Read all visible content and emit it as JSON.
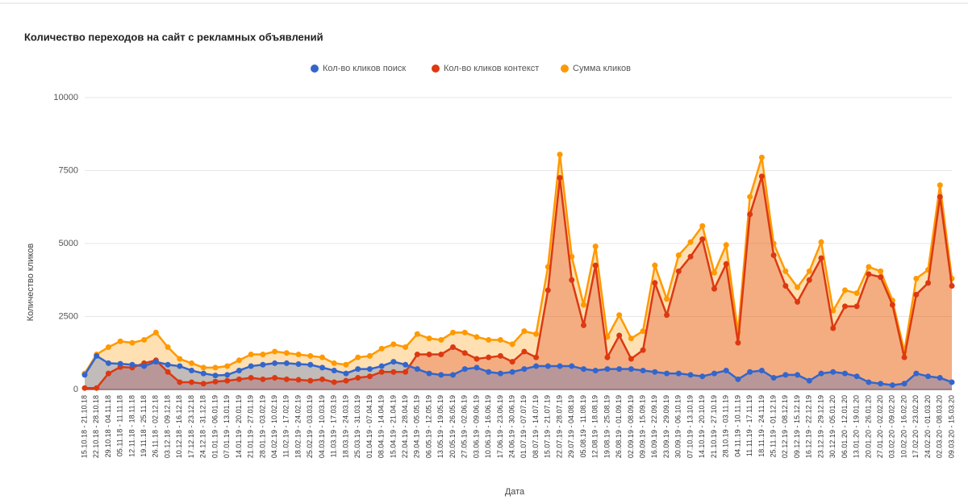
{
  "chart_data": {
    "type": "area",
    "title": "Количество переходов на сайт с рекламных объявлений",
    "x_label": "Дата",
    "y_label": "Количество кликов",
    "categories": [
      "15.10.18 - 21.10.18",
      "22.10.18 - 28.10.18",
      "29.10.18 - 04.11.18",
      "05.11.18 - 11.11.18",
      "12.11.18 - 18.11.18",
      "19.11.18 - 25.11.18",
      "26.11.18 - 02.12.18",
      "03.12.18 - 09.12.18",
      "10.12.18 - 16.12.18",
      "17.12.18 - 23.12.18",
      "24.12.18 - 31.12.18",
      "01.01.19 - 06.01.19",
      "07.01.19 - 13.01.19",
      "14.01.19 - 20.01.19",
      "21.01.19 - 27.01.19",
      "28.01.19 - 03.02.19",
      "04.02.19 - 10.02.19",
      "11.02.19 - 17.02.19",
      "18.02.19 - 24.02.19",
      "25.02.19 - 03.03.19",
      "04.03.19 - 10.03.19",
      "11.03.19 - 17.03.19",
      "18.03.19 - 24.03.19",
      "25.03.19 - 31.03.19",
      "01.04.19 - 07.04.19",
      "08.04.19 - 14.04.19",
      "15.04.19 - 21.04.19",
      "22.04.19 - 28.04.19",
      "29.04.19 - 05.05.19",
      "06.05.19 - 12.05.19",
      "13.05.19 - 19.05.19",
      "20.05.19 - 26.05.19",
      "27.05.19 - 02.06.19",
      "03.06.19 - 09.06.19",
      "10.06.19 - 16.06.19",
      "17.06.19 - 23.06.19",
      "24.06.19 - 30.06.19",
      "01.07.19 - 07.07.19",
      "08.07.19 - 14.07.19",
      "15.07.19 - 21.07.19",
      "22.07.19 - 28.07.19",
      "29.07.19 - 04.08.19",
      "05.08.19 - 11.08.19",
      "12.08.19 - 18.08.19",
      "19.08.19 - 25.08.19",
      "26.08.19 - 01.09.19",
      "02.09.19 - 08.09.19",
      "09.09.19 - 15.09.19",
      "16.09.19 - 22.09.19",
      "23.09.19 - 29.09.19",
      "30.09.19 - 06.10.19",
      "07.10.19 - 13.10.19",
      "14.10.19 - 20.10.19",
      "21.10.19 - 27.10.19",
      "28.10.19 - 03.11.19",
      "04.11.19 - 10.11.19",
      "11.11.19 - 17.11.19",
      "18.11.19 - 24.11.19",
      "25.11.19 - 01.12.19",
      "02.12.19 - 08.12.19",
      "09.12.19 - 15.12.19",
      "16.12.19 - 22.12.19",
      "23.12.19 - 29.12.19",
      "30.12.19 - 05.01.20",
      "06.01.20 - 12.01.20",
      "13.01.20 - 19.01.20",
      "20.01.20 - 26.01.20",
      "27.01.20 - 02.02.20",
      "03.02.20 - 09.02.20",
      "10.02.20 - 16.02.20",
      "17.02.20 - 23.02.20",
      "24.02.20 - 01.03.20",
      "02.03.20 - 08.03.20",
      "09.03.20 - 15.03.20"
    ],
    "series": [
      {
        "name": "Кол-во кликов поиск",
        "color": "#3366cc",
        "values": [
          500,
          1150,
          900,
          880,
          850,
          800,
          950,
          850,
          800,
          650,
          550,
          480,
          500,
          650,
          800,
          850,
          900,
          900,
          870,
          850,
          750,
          650,
          550,
          700,
          700,
          800,
          950,
          850,
          700,
          550,
          500,
          500,
          700,
          750,
          600,
          550,
          600,
          700,
          800,
          800,
          800,
          800,
          700,
          650,
          700,
          700,
          700,
          650,
          600,
          550,
          550,
          500,
          450,
          550,
          650,
          350,
          600,
          650,
          400,
          500,
          500,
          300,
          550,
          600,
          550,
          450,
          250,
          200,
          150,
          200,
          550,
          450,
          400,
          250
        ]
      },
      {
        "name": "Кол-во кликов контекст",
        "color": "#dc3912",
        "values": [
          50,
          50,
          550,
          770,
          750,
          900,
          1000,
          600,
          250,
          250,
          200,
          270,
          300,
          350,
          400,
          350,
          400,
          350,
          330,
          300,
          350,
          250,
          300,
          400,
          450,
          600,
          600,
          600,
          1200,
          1200,
          1200,
          1450,
          1250,
          1050,
          1100,
          1150,
          950,
          1300,
          1100,
          3400,
          7250,
          3750,
          2200,
          4250,
          1100,
          1850,
          1050,
          1350,
          3650,
          2550,
          4050,
          4550,
          5150,
          3450,
          4300,
          1600,
          6000,
          7300,
          4600,
          3550,
          3000,
          3750,
          4500,
          2100,
          2850,
          2850,
          3950,
          3850,
          2900,
          1100,
          3250,
          3650,
          6600,
          3550
        ]
      },
      {
        "name": "Сумма кликов",
        "color": "#ff9900",
        "values": [
          550,
          1200,
          1450,
          1650,
          1600,
          1700,
          1950,
          1450,
          1050,
          900,
          750,
          750,
          800,
          1000,
          1200,
          1200,
          1300,
          1250,
          1200,
          1150,
          1100,
          900,
          850,
          1100,
          1150,
          1400,
          1550,
          1450,
          1900,
          1750,
          1700,
          1950,
          1950,
          1800,
          1700,
          1700,
          1550,
          2000,
          1900,
          4200,
          8050,
          4550,
          2900,
          4900,
          1800,
          2550,
          1750,
          2000,
          4250,
          3100,
          4600,
          5050,
          5600,
          4000,
          4950,
          1950,
          6600,
          7950,
          5000,
          4050,
          3500,
          4050,
          5050,
          2700,
          3400,
          3300,
          4200,
          4050,
          3050,
          1300,
          3800,
          4100,
          7000,
          3800
        ]
      }
    ],
    "ylim": [
      0,
      10000
    ],
    "yticks": [
      0,
      2500,
      5000,
      7500,
      10000
    ],
    "grid": true,
    "legend": "top"
  }
}
